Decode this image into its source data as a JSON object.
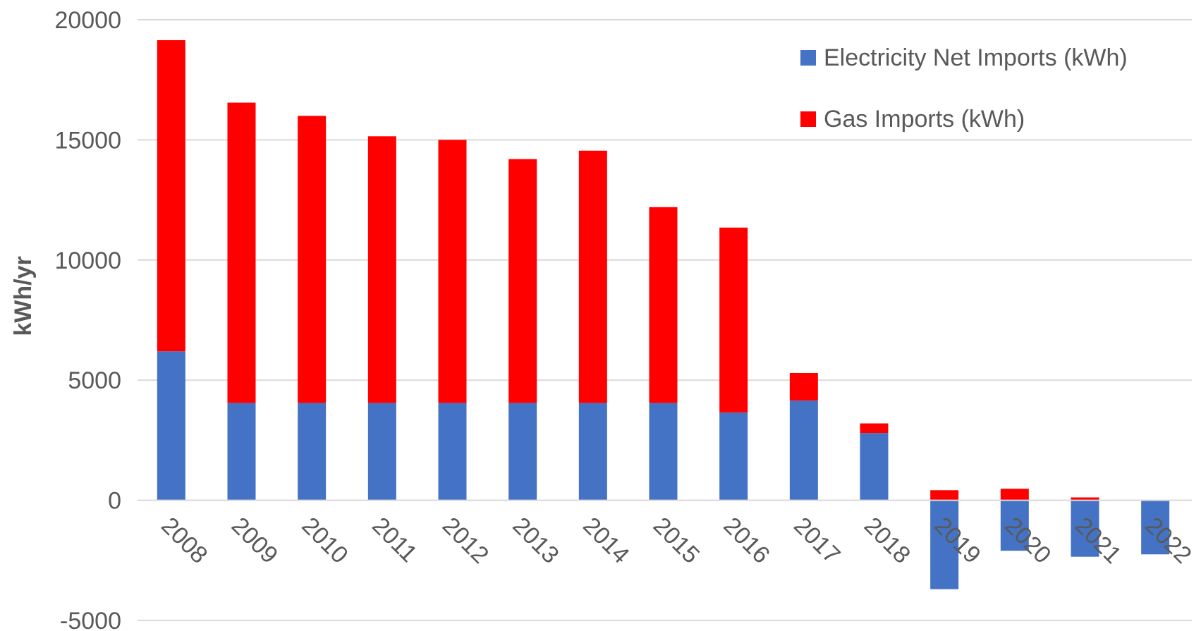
{
  "chart_data": {
    "type": "bar",
    "stacked": true,
    "categories": [
      "2008",
      "2009",
      "2010",
      "2011",
      "2012",
      "2013",
      "2014",
      "2015",
      "2016",
      "2017",
      "2018",
      "2019",
      "2020",
      "2021",
      "2022"
    ],
    "series": [
      {
        "name": "Electricity Net Imports (kWh)",
        "color": "#4472C4",
        "values": [
          6200,
          4050,
          4050,
          4050,
          4050,
          4050,
          4050,
          4050,
          3650,
          4150,
          2800,
          -3700,
          -2100,
          -2350,
          -2250
        ]
      },
      {
        "name": "Gas Imports (kWh)",
        "color": "#FF0000",
        "values": [
          12950,
          12500,
          11950,
          11100,
          10950,
          10150,
          10500,
          8150,
          7700,
          1150,
          400,
          420,
          480,
          120,
          0
        ]
      }
    ],
    "ylabel": "kWh/yr",
    "xlabel": "",
    "ylim": [
      -5000,
      20000
    ],
    "yticks": [
      "-5000",
      "0",
      "5000",
      "10000",
      "15000",
      "20000"
    ],
    "ytick_values": [
      -5000,
      0,
      5000,
      10000,
      15000,
      20000
    ],
    "grid": true,
    "legend_position": "top-right",
    "gridline_color": "#D9D9D9"
  }
}
